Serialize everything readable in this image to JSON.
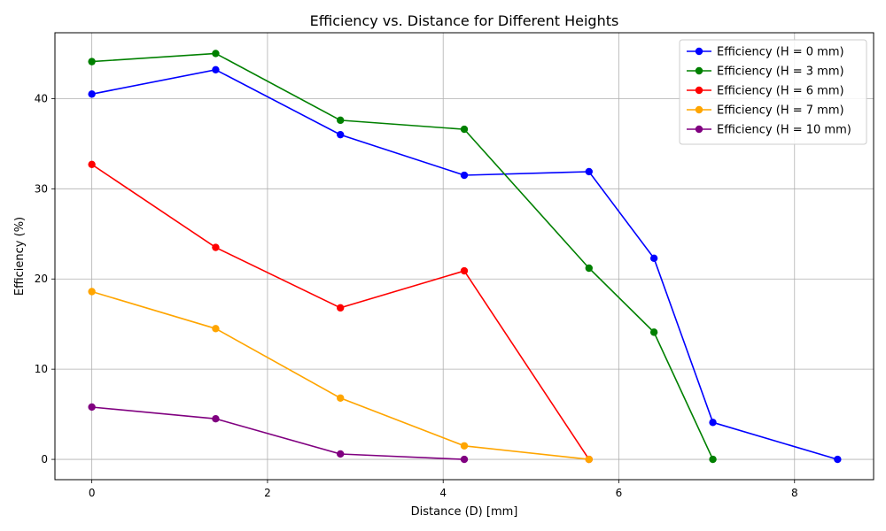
{
  "chart_data": {
    "type": "line",
    "title": "Efficiency vs. Distance for Different Heights",
    "xlabel": "Distance (D) [mm]",
    "ylabel": "Efficiency (%)",
    "xlim": [
      -0.42,
      8.9
    ],
    "ylim": [
      -2.25,
      47.3
    ],
    "xticks": [
      0,
      2,
      4,
      6,
      8
    ],
    "yticks": [
      0,
      10,
      20,
      30,
      40
    ],
    "grid": true,
    "legend_position": "top-right",
    "series": [
      {
        "name": "Efficiency (H = 0 mm)",
        "color": "#0000ff",
        "x": [
          0,
          1.41,
          2.83,
          4.24,
          5.66,
          6.4,
          7.07,
          8.49
        ],
        "y": [
          40.5,
          43.2,
          36.0,
          31.5,
          31.9,
          22.3,
          4.1,
          0.0
        ]
      },
      {
        "name": "Efficiency (H = 3 mm)",
        "color": "#008000",
        "x": [
          0,
          1.41,
          2.83,
          4.24,
          5.66,
          6.4,
          7.07
        ],
        "y": [
          44.1,
          45.0,
          37.6,
          36.6,
          21.2,
          14.1,
          0.0
        ]
      },
      {
        "name": "Efficiency (H = 6 mm)",
        "color": "#ff0000",
        "x": [
          0,
          1.41,
          2.83,
          4.24,
          5.66
        ],
        "y": [
          32.7,
          23.5,
          16.8,
          20.9,
          0.0
        ]
      },
      {
        "name": "Efficiency (H = 7 mm)",
        "color": "#ffa500",
        "x": [
          0,
          1.41,
          2.83,
          4.24,
          5.66
        ],
        "y": [
          18.6,
          14.5,
          6.8,
          1.5,
          0.0
        ]
      },
      {
        "name": "Efficiency (H = 10 mm)",
        "color": "#800080",
        "x": [
          0,
          1.41,
          2.83,
          4.24
        ],
        "y": [
          5.8,
          4.5,
          0.6,
          0.0
        ]
      }
    ]
  }
}
